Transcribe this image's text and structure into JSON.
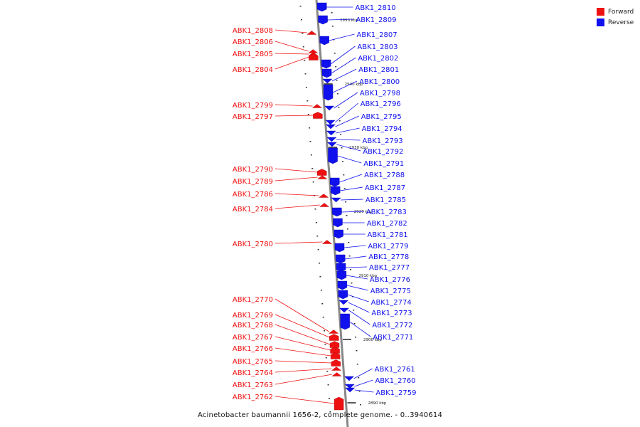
{
  "caption": "Acinetobacter baumannii 1656-2, complete genome. - 0..3940614",
  "colors": {
    "forward": "#ee1111",
    "reverse": "#1111ee",
    "backbone": "#888888"
  },
  "legend": [
    {
      "label": "Forward",
      "strand": "forward"
    },
    {
      "label": "Reverse",
      "strand": "reverse"
    }
  ],
  "scale_labels": [
    "2950 kbp",
    "2940 kbp",
    "2930 kbp",
    "2920 kbp",
    "2910 kbp",
    "2900 kbp",
    "2890 kbp"
  ],
  "forward_genes": [
    "ABK1_2808",
    "ABK1_2806",
    "ABK1_2805",
    "ABK1_2804",
    "ABK1_2799",
    "ABK1_2797",
    "ABK1_2790",
    "ABK1_2789",
    "ABK1_2786",
    "ABK1_2784",
    "ABK1_2780",
    "ABK1_2770",
    "ABK1_2769",
    "ABK1_2768",
    "ABK1_2767",
    "ABK1_2766",
    "ABK1_2765",
    "ABK1_2764",
    "ABK1_2763",
    "ABK1_2762"
  ],
  "reverse_genes": [
    "ABK1_2810",
    "ABK1_2809",
    "ABK1_2807",
    "ABK1_2803",
    "ABK1_2802",
    "ABK1_2801",
    "ABK1_2800",
    "ABK1_2798",
    "ABK1_2796",
    "ABK1_2795",
    "ABK1_2794",
    "ABK1_2793",
    "ABK1_2792",
    "ABK1_2791",
    "ABK1_2788",
    "ABK1_2787",
    "ABK1_2785",
    "ABK1_2783",
    "ABK1_2782",
    "ABK1_2781",
    "ABK1_2779",
    "ABK1_2778",
    "ABK1_2777",
    "ABK1_2776",
    "ABK1_2775",
    "ABK1_2774",
    "ABK1_2773",
    "ABK1_2772",
    "ABK1_2771",
    "ABK1_2761",
    "ABK1_2760",
    "ABK1_2759"
  ]
}
